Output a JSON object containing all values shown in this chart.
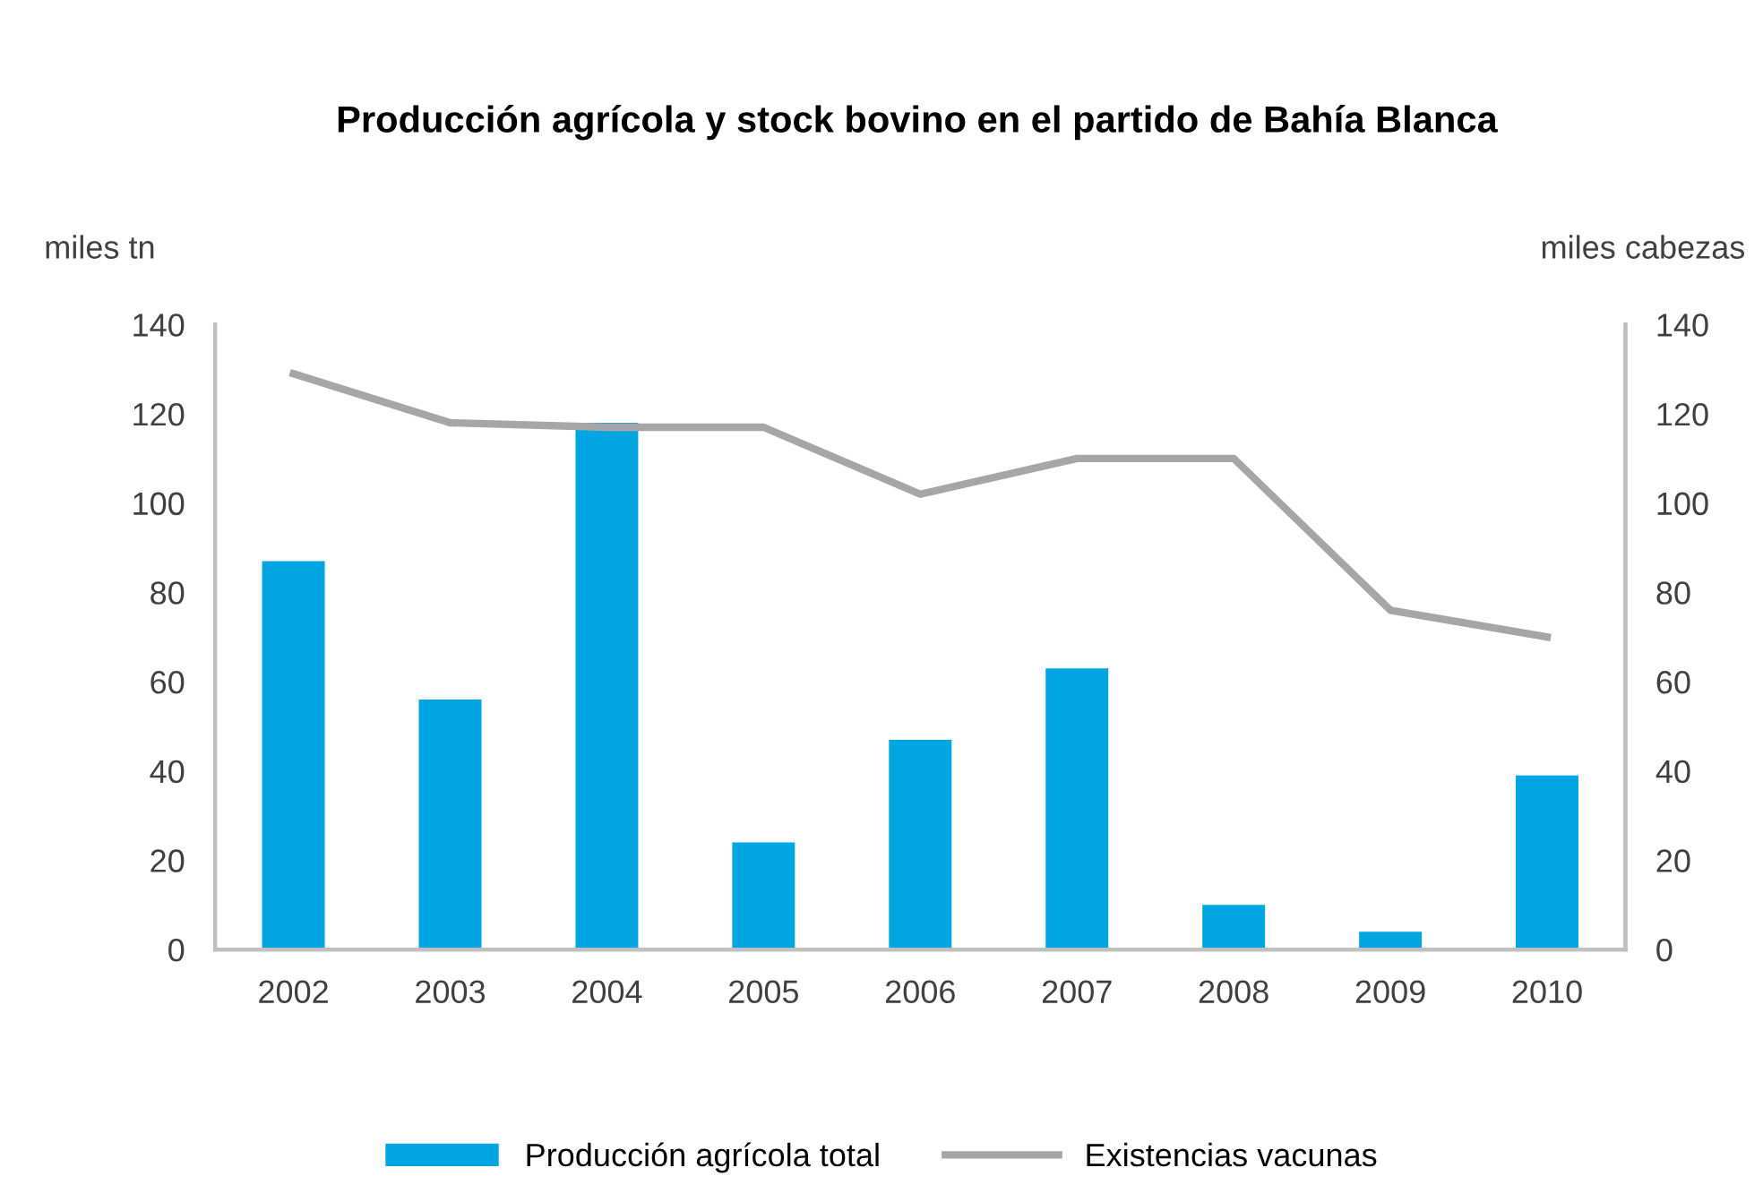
{
  "chart_data": {
    "type": "bar",
    "title": "Producción agrícola y stock bovino en el partido de Bahía Blanca",
    "ylabel": "miles tn",
    "y2label": "miles cabezas",
    "categories": [
      "2002",
      "2003",
      "2004",
      "2005",
      "2006",
      "2007",
      "2008",
      "2009",
      "2010"
    ],
    "series": [
      {
        "name": "Producción agrícola total",
        "color": "#00a6e2",
        "values": [
          87,
          56,
          118,
          24,
          47,
          63,
          10,
          4,
          39
        ]
      },
      {
        "name": "Existencias vacunas",
        "type": "line",
        "axis": "y2",
        "color": "#a6a6a6",
        "values": [
          129,
          118,
          117,
          117,
          102,
          110,
          110,
          76,
          70
        ]
      }
    ],
    "ylim": [
      0,
      140
    ],
    "yticks": [
      0,
      20,
      40,
      60,
      80,
      100,
      120,
      140
    ],
    "y2lim": [
      0,
      140
    ],
    "y2ticks": [
      0,
      20,
      40,
      60,
      80,
      100,
      120,
      140
    ],
    "grid": false,
    "legend": "bottom",
    "marker": "none",
    "line_style": "solid"
  }
}
